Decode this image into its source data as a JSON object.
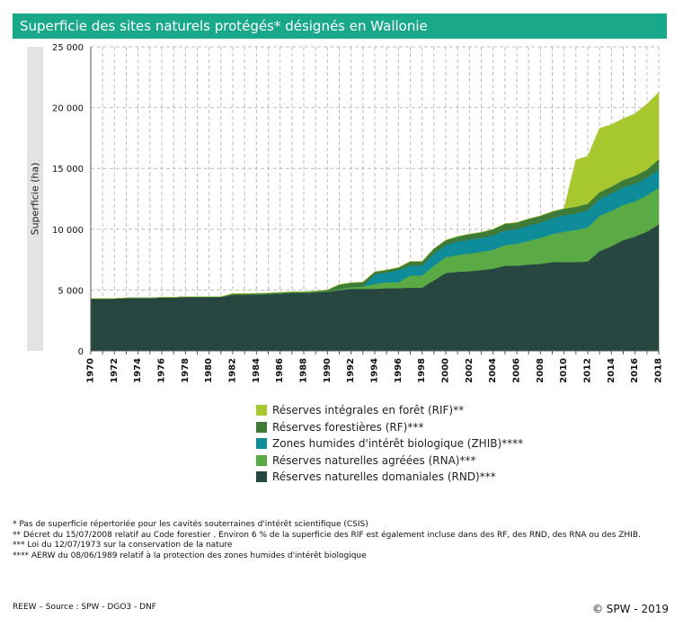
{
  "title": "Superficie des sites naturels protégés* désignés en Wallonie",
  "chart_data": {
    "type": "area",
    "stacked": true,
    "title": "Superficie des sites naturels protégés* désignés en Wallonie",
    "ylabel": "Superficie (ha)",
    "xlabel": "",
    "ylim": [
      0,
      25000
    ],
    "yticks": [
      0,
      5000,
      10000,
      15000,
      20000,
      25000
    ],
    "ytick_labels": [
      "0",
      "5 000",
      "10 000",
      "15 000",
      "20 000",
      "25 000"
    ],
    "x": [
      1970,
      1971,
      1972,
      1973,
      1974,
      1975,
      1976,
      1977,
      1978,
      1979,
      1980,
      1981,
      1982,
      1983,
      1984,
      1985,
      1986,
      1987,
      1988,
      1989,
      1990,
      1991,
      1992,
      1993,
      1994,
      1995,
      1996,
      1997,
      1998,
      1999,
      2000,
      2001,
      2002,
      2003,
      2004,
      2005,
      2006,
      2007,
      2008,
      2009,
      2010,
      2011,
      2012,
      2013,
      2014,
      2015,
      2016,
      2017,
      2018
    ],
    "xtick_labels": [
      "1970",
      "1972",
      "1974",
      "1976",
      "1978",
      "1980",
      "1982",
      "1984",
      "1986",
      "1988",
      "1990",
      "1992",
      "1994",
      "1996",
      "1998",
      "2000",
      "2002",
      "2004",
      "2006",
      "2008",
      "2010",
      "2012",
      "2014",
      "2016",
      "2018"
    ],
    "grid": true,
    "legend_position": "bottom",
    "series": [
      {
        "name": "Réserves naturelles domaniales (RND)***",
        "color": "#26463f",
        "values": [
          4300,
          4300,
          4300,
          4350,
          4350,
          4350,
          4400,
          4400,
          4450,
          4450,
          4450,
          4450,
          4600,
          4600,
          4620,
          4650,
          4700,
          4750,
          4750,
          4800,
          4850,
          5000,
          5100,
          5100,
          5100,
          5150,
          5150,
          5200,
          5200,
          5800,
          6400,
          6500,
          6550,
          6650,
          6750,
          7000,
          7000,
          7100,
          7150,
          7300,
          7300,
          7300,
          7350,
          8200,
          8600,
          9100,
          9400,
          9800,
          10400
        ]
      },
      {
        "name": "Réserves naturelles agréées (RNA)***",
        "color": "#5aaa45",
        "values": [
          0,
          0,
          0,
          0,
          0,
          0,
          0,
          0,
          0,
          0,
          0,
          0,
          0,
          0,
          0,
          0,
          0,
          0,
          0,
          0,
          50,
          100,
          150,
          200,
          400,
          500,
          500,
          1000,
          1000,
          1200,
          1300,
          1400,
          1450,
          1500,
          1550,
          1700,
          1800,
          1950,
          2150,
          2300,
          2500,
          2650,
          2800,
          2900,
          2900,
          2900,
          2900,
          3000,
          3000
        ]
      },
      {
        "name": "Zones humides d'intérêt biologique (ZHIB)****",
        "color": "#0f8c9a",
        "values": [
          0,
          0,
          0,
          0,
          0,
          0,
          0,
          0,
          0,
          0,
          0,
          0,
          0,
          0,
          0,
          0,
          0,
          0,
          0,
          0,
          0,
          0,
          0,
          0,
          800,
          800,
          1000,
          800,
          800,
          1000,
          1000,
          1100,
          1150,
          1150,
          1200,
          1200,
          1200,
          1250,
          1250,
          1300,
          1350,
          1350,
          1400,
          1400,
          1450,
          1450,
          1450,
          1450,
          1500
        ]
      },
      {
        "name": "Réserves forestières (RF)***",
        "color": "#3e7a38",
        "values": [
          0,
          0,
          0,
          0,
          0,
          0,
          0,
          0,
          0,
          0,
          0,
          0,
          100,
          100,
          100,
          100,
          100,
          100,
          100,
          100,
          100,
          350,
          350,
          350,
          200,
          200,
          200,
          350,
          350,
          400,
          400,
          400,
          450,
          450,
          500,
          550,
          550,
          550,
          550,
          550,
          550,
          550,
          550,
          550,
          550,
          600,
          650,
          650,
          850
        ]
      },
      {
        "name": "Réserves intégrales en forêt (RIF)**",
        "color": "#a8c830",
        "values": [
          0,
          0,
          0,
          0,
          0,
          0,
          0,
          0,
          0,
          0,
          0,
          0,
          0,
          0,
          0,
          0,
          0,
          0,
          0,
          0,
          0,
          0,
          0,
          0,
          0,
          0,
          0,
          0,
          0,
          0,
          0,
          0,
          0,
          0,
          0,
          0,
          0,
          0,
          0,
          0,
          0,
          3850,
          3900,
          5250,
          5100,
          5050,
          5100,
          5400,
          5500
        ]
      }
    ],
    "legend_order": [
      4,
      3,
      2,
      1,
      0
    ]
  },
  "footnotes": [
    "* Pas de superficie répertoriée pour les cavités souterraines d'intérêt scientifique (CSIS)",
    "** Décret du 15/07/2008 relatif au Code forestier . Environ 6 % de la superficie des RIF est également incluse dans des RF, des RND, des RNA ou des ZHIB.",
    "*** Loi du 12/07/1973 sur la conservation de la nature",
    "**** AERW du 08/06/1989 relatif à la protection des zones humides d'intérêt biologique"
  ],
  "source": "REEW – Source : SPW - DGO3 - DNF",
  "copyright": "© SPW - 2019"
}
